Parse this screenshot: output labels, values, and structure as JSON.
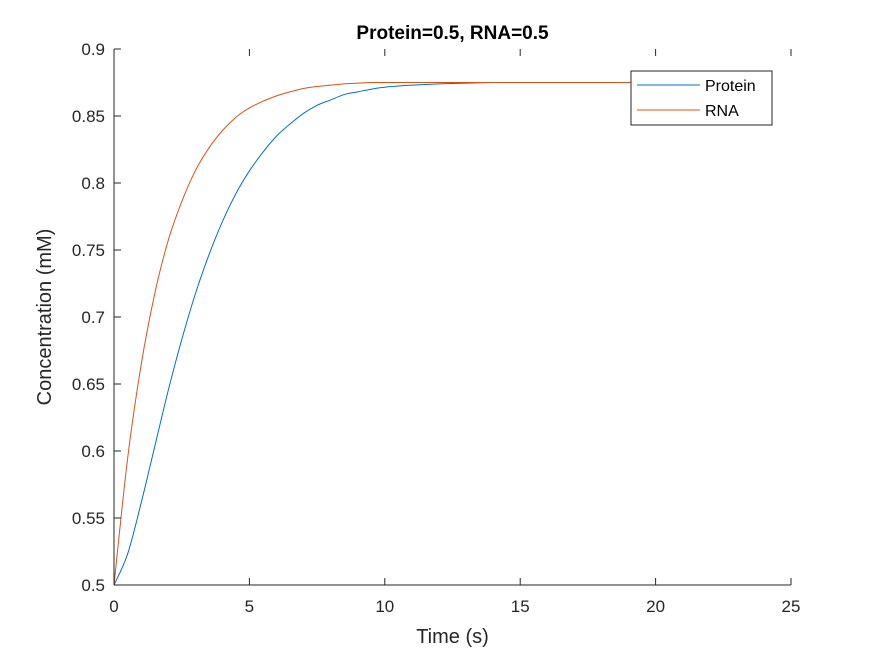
{
  "chart_data": {
    "type": "line",
    "title": "Protein=0.5, RNA=0.5",
    "xlabel": "Time (s)",
    "ylabel": "Concentration (mM)",
    "xlim": [
      0,
      25
    ],
    "ylim": [
      0.5,
      0.9
    ],
    "x_ticks": [
      0,
      5,
      10,
      15,
      20,
      25
    ],
    "y_ticks": [
      0.5,
      0.55,
      0.6,
      0.65,
      0.7,
      0.75,
      0.8,
      0.85,
      0.9
    ],
    "x_tick_labels": [
      "0",
      "5",
      "10",
      "15",
      "20",
      "25"
    ],
    "y_tick_labels": [
      "0.5",
      "0.55",
      "0.6",
      "0.65",
      "0.7",
      "0.75",
      "0.8",
      "0.85",
      "0.9"
    ],
    "grid": false,
    "legend_position": "top-right",
    "x": [
      0,
      0.5,
      1,
      1.5,
      2,
      2.5,
      3,
      3.5,
      4,
      4.5,
      5,
      5.5,
      6,
      6.5,
      7,
      7.5,
      8,
      8.5,
      9,
      9.5,
      10,
      11,
      12,
      13,
      14,
      15,
      16,
      17,
      18,
      19,
      20
    ],
    "series": [
      {
        "name": "Protein",
        "color": "#0072BD",
        "values": [
          0.5,
          0.523,
          0.561,
          0.603,
          0.645,
          0.683,
          0.717,
          0.746,
          0.771,
          0.792,
          0.809,
          0.823,
          0.835,
          0.844,
          0.852,
          0.858,
          0.862,
          0.866,
          0.868,
          0.87,
          0.8715,
          0.873,
          0.874,
          0.8745,
          0.875,
          0.875,
          0.875,
          0.875,
          0.875,
          0.875,
          0.875
        ]
      },
      {
        "name": "RNA",
        "color": "#D95319",
        "values": [
          0.5,
          0.594,
          0.664,
          0.717,
          0.757,
          0.786,
          0.809,
          0.826,
          0.839,
          0.849,
          0.856,
          0.861,
          0.865,
          0.868,
          0.8705,
          0.872,
          0.873,
          0.874,
          0.8745,
          0.875,
          0.875,
          0.875,
          0.875,
          0.875,
          0.875,
          0.875,
          0.875,
          0.875,
          0.875,
          0.875,
          0.875
        ]
      }
    ]
  }
}
